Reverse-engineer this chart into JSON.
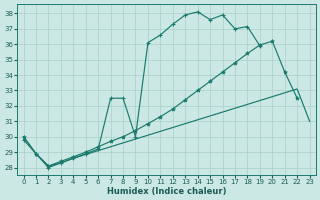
{
  "xlabel": "Humidex (Indice chaleur)",
  "bg_color": "#cce8e4",
  "grid_color": "#aacfca",
  "line_color": "#1a7a6e",
  "xlim": [
    -0.5,
    23.5
  ],
  "ylim": [
    27.5,
    38.6
  ],
  "yticks": [
    28,
    29,
    30,
    31,
    32,
    33,
    34,
    35,
    36,
    37,
    38
  ],
  "xticks": [
    0,
    1,
    2,
    3,
    4,
    5,
    6,
    7,
    8,
    9,
    10,
    11,
    12,
    13,
    14,
    15,
    16,
    17,
    18,
    19,
    20,
    21,
    22,
    23
  ],
  "line1": {
    "x": [
      0,
      1,
      2,
      3,
      4,
      5,
      6,
      7,
      8,
      9,
      10,
      11,
      12,
      13,
      14,
      15,
      16,
      17,
      18,
      19,
      20,
      21,
      22,
      23
    ],
    "y": [
      30.0,
      28.9,
      28.1,
      28.3,
      28.6,
      28.85,
      29.1,
      29.35,
      29.6,
      29.85,
      30.1,
      30.35,
      30.6,
      30.85,
      31.1,
      31.35,
      31.6,
      31.85,
      32.1,
      32.35,
      32.6,
      32.85,
      33.1,
      31.0
    ]
  },
  "line2": {
    "x": [
      0,
      1,
      2,
      3,
      4,
      5,
      6,
      7,
      8,
      9,
      10,
      11,
      12,
      13,
      14,
      15,
      16,
      17,
      18,
      19,
      20,
      21,
      22
    ],
    "y": [
      30.0,
      28.9,
      28.1,
      28.4,
      28.7,
      29.0,
      29.35,
      29.7,
      30.0,
      30.4,
      30.85,
      31.3,
      31.8,
      32.4,
      33.0,
      33.6,
      34.2,
      34.8,
      35.4,
      35.95,
      36.2,
      34.2,
      32.5
    ]
  },
  "line3": {
    "x": [
      0,
      1,
      2,
      3,
      4,
      5,
      6,
      7,
      8,
      9,
      10,
      11,
      12,
      13,
      14,
      15,
      16,
      17,
      18,
      19
    ],
    "y": [
      29.8,
      28.9,
      28.0,
      28.3,
      28.6,
      28.9,
      29.2,
      32.5,
      32.5,
      30.0,
      36.1,
      36.6,
      37.3,
      37.9,
      38.1,
      37.6,
      37.9,
      37.0,
      37.15,
      35.9
    ]
  }
}
